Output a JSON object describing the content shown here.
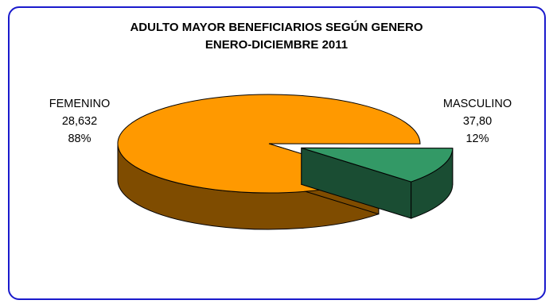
{
  "chart_data": {
    "type": "pie",
    "title": "ADULTO MAYOR BENEFICIARIOS SEGÚN GENERO",
    "subtitle": "ENERO-DICIEMBRE 2011",
    "slices": [
      {
        "label": "FEMENINO",
        "value_text": "28,632",
        "percent_text": "88%",
        "percent": 88,
        "color": "#FF9900",
        "side_color": "#7F4C00"
      },
      {
        "label": "MASCULINO",
        "value_text": "37,80",
        "percent_text": "12%",
        "percent": 12,
        "color": "#339966",
        "side_color": "#1A4D33"
      }
    ],
    "style": "3d-exploded"
  }
}
